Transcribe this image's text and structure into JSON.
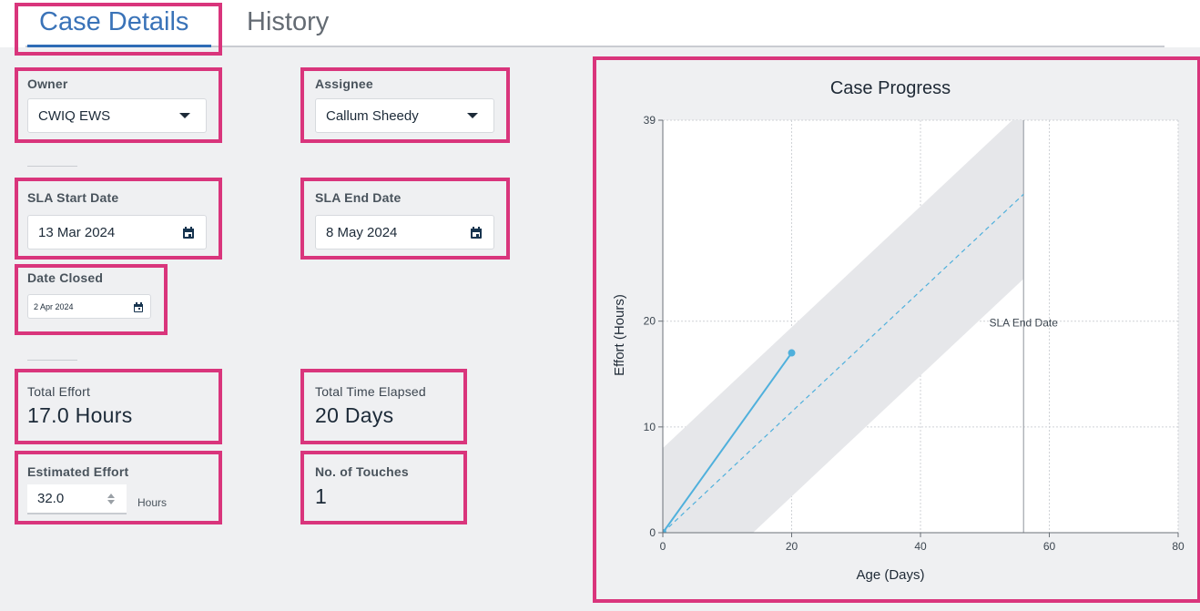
{
  "tabs": [
    {
      "label": "Case Details",
      "active": true
    },
    {
      "label": "History",
      "active": false
    }
  ],
  "owner": {
    "label": "Owner",
    "value": "CWIQ EWS"
  },
  "assignee": {
    "label": "Assignee",
    "value": "Callum Sheedy"
  },
  "sla_start": {
    "label": "SLA Start Date",
    "value": "13 Mar 2024"
  },
  "sla_end": {
    "label": "SLA End Date",
    "value": "8 May 2024"
  },
  "date_closed": {
    "label": "Date Closed",
    "value": "2 Apr 2024"
  },
  "total_effort": {
    "label": "Total Effort",
    "value": "17.0 Hours"
  },
  "total_time": {
    "label": "Total Time Elapsed",
    "value": "20 Days"
  },
  "estimated_effort": {
    "label": "Estimated Effort",
    "value": "32.0",
    "unit": "Hours"
  },
  "touches": {
    "label": "No. of Touches",
    "value": "1"
  },
  "colors": {
    "accent": "#2e6cb6",
    "highlight": "#d9357c",
    "series": "#4fb0dc",
    "band": "#e6e7ea"
  },
  "chart_data": {
    "type": "line",
    "title": "Case Progress",
    "xlabel": "Age (Days)",
    "ylabel": "Effort (Hours)",
    "xlim": [
      0,
      80
    ],
    "ylim": [
      0,
      39
    ],
    "x_ticks": [
      0,
      20,
      40,
      60,
      80
    ],
    "y_ticks": [
      0,
      10,
      20,
      39
    ],
    "grid": true,
    "series": [
      {
        "style": "solid",
        "points": [
          [
            0,
            0
          ],
          [
            20,
            17
          ]
        ]
      },
      {
        "style": "dashed",
        "points": [
          [
            0,
            0
          ],
          [
            56,
            32
          ]
        ]
      }
    ],
    "band": {
      "lower_offset": -8,
      "upper_offset": 8,
      "x_range": [
        0,
        56
      ]
    },
    "vline": {
      "x": 56,
      "label": "SLA End Date",
      "label_y": 19.5
    }
  }
}
